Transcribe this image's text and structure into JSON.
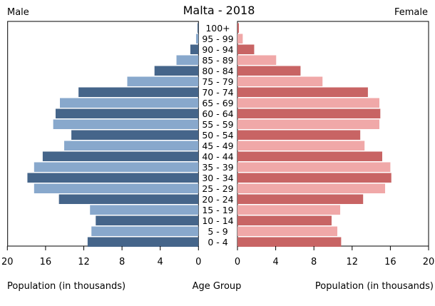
{
  "chart_data": {
    "type": "bar",
    "title": "Malta - 2018",
    "left_label": "Male",
    "right_label": "Female",
    "xlabel_left": "Population (in thousands)",
    "xlabel_center": "Age Group",
    "xlabel_right": "Population (in thousands)",
    "xlim": [
      0,
      20
    ],
    "ticks": [
      0,
      4,
      8,
      12,
      16,
      20
    ],
    "categories": [
      "100+",
      "95 - 99",
      "90 - 94",
      "85 - 89",
      "80 - 84",
      "75 - 79",
      "70 - 74",
      "65 - 69",
      "60 - 64",
      "55 - 59",
      "50 - 54",
      "45 - 49",
      "40 - 44",
      "35 - 39",
      "30 - 34",
      "25 - 29",
      "20 - 24",
      "15 - 19",
      "10 - 14",
      "5 - 9",
      "0 - 4"
    ],
    "series": [
      {
        "name": "Male",
        "values": [
          0.1,
          0.25,
          0.85,
          2.3,
          4.6,
          7.45,
          12.55,
          14.5,
          14.95,
          15.2,
          13.3,
          14.05,
          16.3,
          17.2,
          17.9,
          17.2,
          14.6,
          11.35,
          10.75,
          11.2,
          11.6
        ]
      },
      {
        "name": "Female",
        "values": [
          0.15,
          0.55,
          1.75,
          4.05,
          6.6,
          8.9,
          13.65,
          14.85,
          14.95,
          14.85,
          12.85,
          13.3,
          15.15,
          16.0,
          16.1,
          15.45,
          13.15,
          10.75,
          9.85,
          10.45,
          10.85
        ]
      }
    ],
    "colors": {
      "male_dark": "#45658a",
      "male_light": "#88a8cc",
      "female_dark": "#c86464",
      "female_light": "#f0a8a8"
    },
    "grid": false
  }
}
